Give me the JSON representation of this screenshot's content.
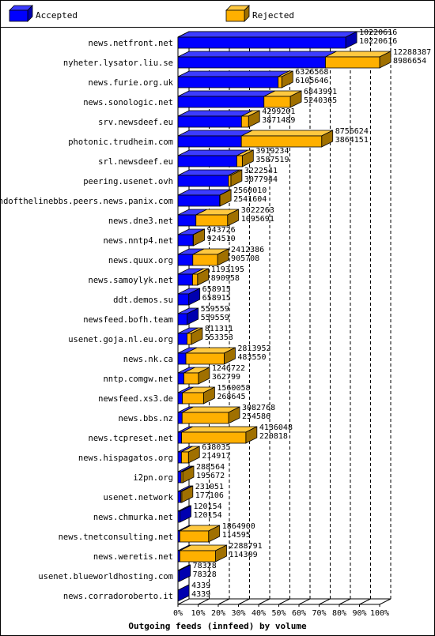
{
  "chart_data": {
    "type": "bar",
    "orientation": "horizontal",
    "stacked": true,
    "three_d": true,
    "xlabel": "Outgoing feeds (innfeed) by volume",
    "x_ticks": [
      "0%",
      "10%",
      "20%",
      "30%",
      "40%",
      "50%",
      "60%",
      "70%",
      "80%",
      "90%",
      "100%"
    ],
    "xlim": [
      0,
      100
    ],
    "x_unit": "percent of largest total (accepted + rejected)",
    "legend_position": "top",
    "grid": "dashed vertical lines",
    "series": [
      {
        "name": "Accepted",
        "color": "#0000ff",
        "side_color": "#0000b0",
        "top_color": "#3c3cff"
      },
      {
        "name": "Rejected",
        "color": "#ffb000",
        "side_color": "#a07000",
        "top_color": "#ffc840"
      }
    ],
    "categories": [
      "news.netfront.net",
      "nyheter.lysator.liu.se",
      "news.furie.org.uk",
      "news.sonologic.net",
      "srv.newsdeef.eu",
      "photonic.trudheim.com",
      "srl.newsdeef.eu",
      "peering.usenet.ovh",
      "endofthelinebbs.peers.news.panix.com",
      "news.dne3.net",
      "news.nntp4.net",
      "news.quux.org",
      "news.samoylyk.net",
      "ddt.demos.su",
      "newsfeed.bofh.team",
      "usenet.goja.nl.eu.org",
      "news.nk.ca",
      "nntp.comgw.net",
      "newsfeed.xs3.de",
      "news.bbs.nz",
      "news.tcpreset.net",
      "news.hispagatos.org",
      "i2pn.org",
      "usenet.network",
      "news.chmurka.net",
      "news.tnetconsulting.net",
      "news.weretis.net",
      "usenet.blueworldhosting.com",
      "news.corradoroberto.it"
    ],
    "offered": [
      10220616,
      12288387,
      6326568,
      6843991,
      4299201,
      8756624,
      3919234,
      3222541,
      2560010,
      3022263,
      943726,
      2412386,
      1193195,
      658915,
      559559,
      811311,
      2813952,
      1246722,
      1560058,
      3082768,
      4136048,
      638035,
      288564,
      231051,
      120154,
      1864900,
      2288791,
      78328,
      4339
    ],
    "accepted": [
      10220616,
      8986654,
      6105646,
      5240365,
      3871489,
      3864151,
      3587519,
      3077944,
      2541604,
      1095691,
      924510,
      905708,
      890958,
      658915,
      559559,
      553353,
      483550,
      362799,
      268645,
      254586,
      220818,
      214917,
      195672,
      177106,
      120154,
      114595,
      114309,
      78328,
      4339
    ],
    "top_value_labels": [
      "10220616",
      "12288387",
      "6326568",
      "6843991",
      "4299201",
      "8756624",
      "3919234",
      "3222541",
      "2560010",
      "3022263",
      "943726",
      "2412386",
      "1193195",
      "658915",
      "559559",
      "811311",
      "2813952",
      "1246722",
      "1560058",
      "3082768",
      "4136048",
      "638035",
      "288564",
      "231051",
      "120154",
      "1864900",
      "2288791",
      "78328",
      "4339"
    ],
    "bottom_value_labels": [
      "10220616",
      "8986654",
      "6105646",
      "5240365",
      "3871489",
      "3864151",
      "3587519",
      "3077944",
      "2541604",
      "1095691",
      "924510",
      "905708",
      "890958",
      "658915",
      "559559",
      "553353",
      "483550",
      "362799",
      "268645",
      "254586",
      "220818",
      "214917",
      "195672",
      "177106",
      "120154",
      "114595",
      "114309",
      "78328",
      "4339"
    ]
  }
}
